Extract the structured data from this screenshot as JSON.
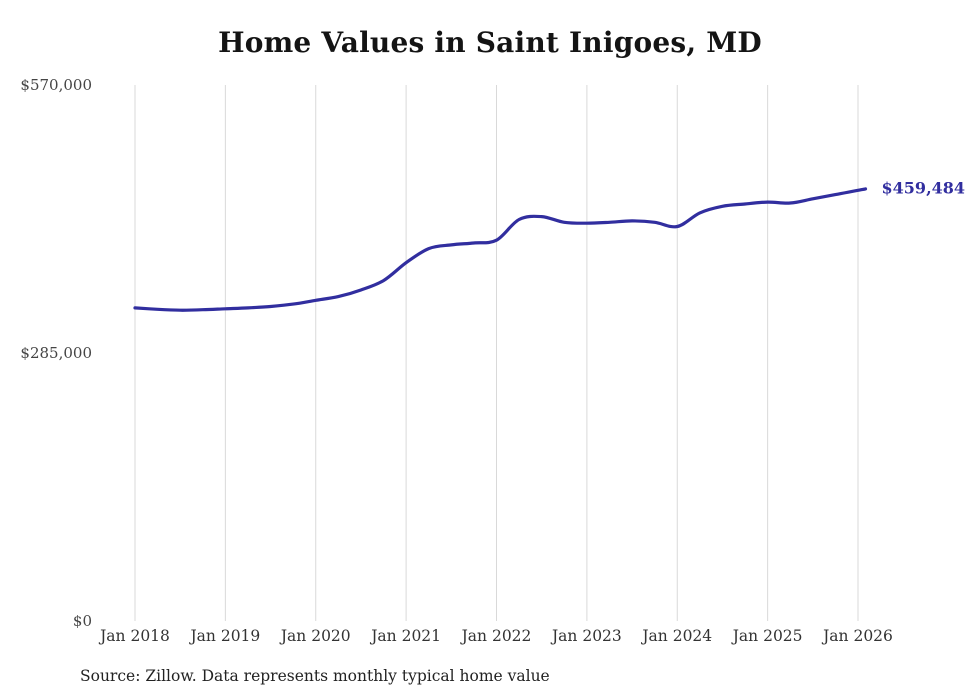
{
  "title": "Home Values in Saint Inigoes, MD",
  "source_note": "Source: Zillow. Data represents monthly typical home value",
  "end_label": "$459,484",
  "colors": {
    "line": "#312e9f",
    "grid": "#d9d9d9",
    "title": "#141414",
    "axis_text": "#454545",
    "end_label": "#312e9f",
    "background": "#ffffff"
  },
  "chart_data": {
    "type": "line",
    "title": "Home Values in Saint Inigoes, MD",
    "xlabel": "",
    "ylabel": "",
    "ylim": [
      0,
      570000
    ],
    "grid": "vertical-only",
    "legend": "none",
    "x_ticks": [
      "Jan 2018",
      "Jan 2019",
      "Jan 2020",
      "Jan 2021",
      "Jan 2022",
      "Jan 2023",
      "Jan 2024",
      "Jan 2025",
      "Jan 2026"
    ],
    "y_ticks": [
      {
        "label": "$570,000",
        "value": 570000
      },
      {
        "label": "$285,000",
        "value": 285000
      },
      {
        "label": "$0",
        "value": 0
      }
    ],
    "final_value": 459484,
    "final_value_label": "$459,484",
    "series": [
      {
        "name": "Typical home value",
        "x": [
          "2018-01",
          "2018-04",
          "2018-07",
          "2018-10",
          "2019-01",
          "2019-04",
          "2019-07",
          "2019-10",
          "2020-01",
          "2020-04",
          "2020-07",
          "2020-10",
          "2021-01",
          "2021-04",
          "2021-07",
          "2021-10",
          "2022-01",
          "2022-04",
          "2022-07",
          "2022-10",
          "2023-01",
          "2023-04",
          "2023-07",
          "2023-10",
          "2024-01",
          "2024-04",
          "2024-07",
          "2024-10",
          "2025-01",
          "2025-04",
          "2025-07",
          "2025-10",
          "2026-01",
          "2026-02"
        ],
        "values": [
          333000,
          331500,
          330500,
          331000,
          332000,
          333000,
          334500,
          337000,
          341000,
          345000,
          352000,
          362000,
          381000,
          396000,
          400000,
          402000,
          405000,
          427000,
          430000,
          424000,
          423000,
          424000,
          425500,
          424000,
          419500,
          434000,
          441000,
          443500,
          445500,
          444500,
          449000,
          453500,
          458000,
          459484
        ]
      }
    ]
  }
}
